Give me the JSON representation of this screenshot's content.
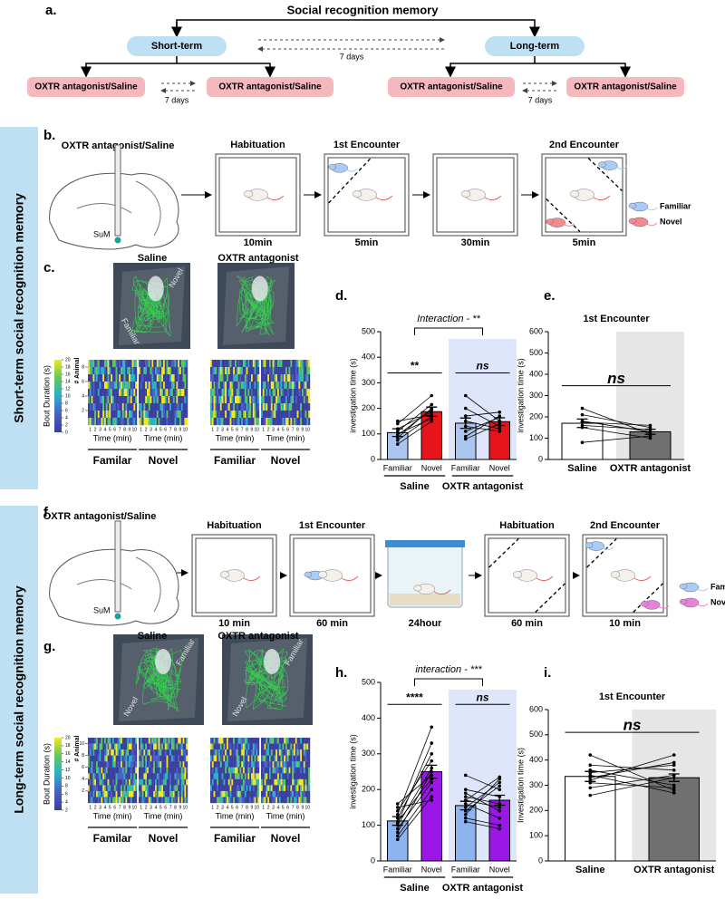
{
  "panel_labels": [
    "a.",
    "b.",
    "c.",
    "d.",
    "e.",
    "f.",
    "g.",
    "h.",
    "i."
  ],
  "side_labels": [
    "Short-term social recognition memory",
    "Long-term social recognition memory"
  ],
  "a": {
    "title": "Social recognition memory",
    "terms": [
      "Short-term",
      "Long-term"
    ],
    "interval": "7 days",
    "treatment": "OXTR antagonist/Saline"
  },
  "b": {
    "treatment": "OXTR antagonist/Saline",
    "region": "SuM",
    "stages": [
      {
        "label": "Habituation",
        "time": "10min"
      },
      {
        "label": "1st Encounter",
        "time": "5min"
      },
      {
        "time": "30min"
      },
      {
        "label": "2nd Encounter",
        "time": "5min"
      }
    ],
    "legend": [
      "Familiar",
      "Novel"
    ]
  },
  "c": {
    "conditions": [
      "Saline",
      "OXTR antagonist"
    ],
    "arena_labels": [
      "Novel",
      "Familiar"
    ],
    "colorbar_label": "Bout Duration (s)",
    "colorbar_ticks": [
      0,
      2,
      4,
      6,
      8,
      10,
      12,
      14,
      16,
      18,
      20
    ],
    "y_label": "# Animal",
    "y_ticks": [
      2,
      4,
      6,
      8
    ],
    "x_label": "Time (min)",
    "x_ticks": [
      1,
      2,
      3,
      4,
      5,
      6,
      7,
      8,
      9,
      10
    ],
    "columns": [
      "Familar",
      "Novel",
      "Familiar",
      "Novel"
    ]
  },
  "f": {
    "treatment": "OXTR antagonist/Saline",
    "region": "SuM",
    "stages": [
      {
        "label": "Habituation",
        "time": "10 min"
      },
      {
        "label": "1st Encounter",
        "time": "60 min"
      },
      {
        "time": "24hour"
      },
      {
        "label": "Habituation",
        "time": "60 min"
      },
      {
        "label": "2nd Encounter",
        "time": "10 min"
      }
    ],
    "legend": [
      "Familiar",
      "Novel"
    ]
  },
  "g": {
    "conditions": [
      "Saline",
      "OXTR antagonist"
    ],
    "arena_labels": [
      "Familiar",
      "Novel"
    ],
    "colorbar_label": "Bout Duration (s)",
    "colorbar_ticks": [
      2,
      4,
      6,
      8,
      10,
      12,
      14,
      16,
      18,
      20
    ],
    "y_label": "# Animal",
    "y_ticks": [
      2,
      4,
      6,
      8,
      10
    ],
    "x_label": "Time (min)",
    "x_ticks": [
      1,
      2,
      3,
      4,
      5,
      6,
      7,
      8,
      9,
      10
    ],
    "columns": [
      "Familar",
      "Novel",
      "Familiar",
      "Novel"
    ]
  },
  "chart_data": [
    {
      "type": "bar",
      "ylabel": "investigation time (s)",
      "categories": [
        "Familiar",
        "Novel",
        "Familiar",
        "Novel"
      ],
      "values": [
        105,
        187,
        142,
        148
      ],
      "errors": [
        15,
        18,
        20,
        15
      ],
      "colors": [
        "#aac6ef",
        "#e8141c",
        "#aac6ef",
        "#e8141c"
      ],
      "shaded": [
        false,
        false,
        true,
        true
      ],
      "shade_color": "#dfe6fb",
      "groups": [
        {
          "name": "Saline",
          "categories": [
            0,
            1
          ]
        },
        {
          "name": "OXTR antagonist",
          "categories": [
            2,
            3
          ]
        }
      ],
      "comparisons": [
        {
          "categories": [
            0,
            1
          ],
          "label": "**"
        },
        {
          "categories": [
            2,
            3
          ],
          "label": "ns"
        }
      ],
      "interaction": "Interaction - **",
      "ylim": [
        0,
        500
      ],
      "yticks": [
        0,
        100,
        200,
        300,
        400,
        500
      ],
      "individuals": [
        [
          60,
          150,
          null,
          null
        ],
        [
          75,
          170,
          null,
          null
        ],
        [
          95,
          195,
          null,
          null
        ],
        [
          110,
          215,
          null,
          null
        ],
        [
          100,
          160,
          null,
          null
        ],
        [
          140,
          250,
          null,
          null
        ],
        [
          120,
          185,
          null,
          null
        ],
        [
          85,
          200,
          null,
          null
        ],
        [
          150,
          175,
          null,
          null
        ],
        [
          null,
          null,
          250,
          150
        ],
        [
          null,
          null,
          200,
          130
        ],
        [
          null,
          null,
          170,
          185
        ],
        [
          null,
          null,
          130,
          110
        ],
        [
          null,
          null,
          80,
          140
        ],
        [
          null,
          null,
          110,
          165
        ],
        [
          null,
          null,
          150,
          120
        ],
        [
          null,
          null,
          90,
          170
        ]
      ]
    },
    {
      "type": "bar",
      "title": "1st Encounter",
      "ylabel": "investigation time (s)",
      "categories": [
        "Saline",
        "OXTR antagonist"
      ],
      "values": [
        170,
        130
      ],
      "errors": [
        20,
        12
      ],
      "colors": [
        "#ffffff",
        "#707070"
      ],
      "shaded": [
        false,
        true
      ],
      "shade_color": "#e6e6e6",
      "comparisons": [
        {
          "categories": [
            0,
            1
          ],
          "label": "ns"
        }
      ],
      "ylim": [
        0,
        600
      ],
      "yticks": [
        0,
        100,
        200,
        300,
        400,
        500,
        600
      ],
      "individuals": [
        [
          240,
          120
        ],
        [
          210,
          150
        ],
        [
          180,
          130
        ],
        [
          160,
          140
        ],
        [
          80,
          110
        ],
        [
          150,
          100
        ],
        [
          175,
          160
        ]
      ]
    },
    {
      "type": "bar",
      "ylabel": "investigation time (s)",
      "categories": [
        "Familiar",
        "Novel",
        "Familiar",
        "Novel"
      ],
      "values": [
        112,
        250,
        155,
        170
      ],
      "errors": [
        12,
        18,
        12,
        14
      ],
      "colors": [
        "#8db4ee",
        "#9a17e6",
        "#8db4ee",
        "#9a17e6"
      ],
      "shaded": [
        false,
        false,
        true,
        true
      ],
      "shade_color": "#dfe6fb",
      "groups": [
        {
          "name": "Saline",
          "categories": [
            0,
            1
          ]
        },
        {
          "name": "OXTR antagonist",
          "categories": [
            2,
            3
          ]
        }
      ],
      "comparisons": [
        {
          "categories": [
            0,
            1
          ],
          "label": "****"
        },
        {
          "categories": [
            2,
            3
          ],
          "label": "ns"
        }
      ],
      "interaction": "interaction - ***",
      "ylim": [
        0,
        500
      ],
      "yticks": [
        0,
        100,
        200,
        300,
        400,
        500
      ],
      "individuals": [
        [
          60,
          180,
          null,
          null
        ],
        [
          80,
          250,
          null,
          null
        ],
        [
          100,
          260,
          null,
          null
        ],
        [
          120,
          300,
          null,
          null
        ],
        [
          90,
          220,
          null,
          null
        ],
        [
          140,
          280,
          null,
          null
        ],
        [
          110,
          230,
          null,
          null
        ],
        [
          130,
          375,
          null,
          null
        ],
        [
          70,
          200,
          null,
          null
        ],
        [
          160,
          240,
          null,
          null
        ],
        [
          105,
          330,
          null,
          null
        ],
        [
          150,
          170,
          null,
          null
        ],
        [
          null,
          null,
          110,
          90
        ],
        [
          null,
          null,
          140,
          210
        ],
        [
          null,
          null,
          170,
          150
        ],
        [
          null,
          null,
          200,
          180
        ],
        [
          null,
          null,
          240,
          200
        ],
        [
          null,
          null,
          130,
          230
        ],
        [
          null,
          null,
          160,
          120
        ],
        [
          null,
          null,
          180,
          160
        ],
        [
          null,
          null,
          120,
          100
        ],
        [
          null,
          null,
          150,
          220
        ],
        [
          null,
          null,
          190,
          140
        ],
        [
          null,
          null,
          170,
          235
        ]
      ]
    },
    {
      "type": "bar",
      "title": "1st Encounter",
      "ylabel": "Investigation time (s)",
      "categories": [
        "Saline",
        "OXTR antagonist"
      ],
      "values": [
        335,
        330
      ],
      "errors": [
        20,
        15
      ],
      "colors": [
        "#ffffff",
        "#707070"
      ],
      "shaded": [
        false,
        true
      ],
      "shade_color": "#e6e6e6",
      "comparisons": [
        {
          "categories": [
            0,
            1
          ],
          "label": "ns"
        }
      ],
      "ylim": [
        0,
        600
      ],
      "yticks": [
        0,
        100,
        200,
        300,
        400,
        500,
        600
      ],
      "individuals": [
        [
          420,
          280
        ],
        [
          360,
          300
        ],
        [
          350,
          380
        ],
        [
          320,
          420
        ],
        [
          290,
          340
        ],
        [
          260,
          330
        ],
        [
          340,
          270
        ],
        [
          380,
          360
        ],
        [
          330,
          390
        ],
        [
          310,
          290
        ]
      ]
    }
  ]
}
